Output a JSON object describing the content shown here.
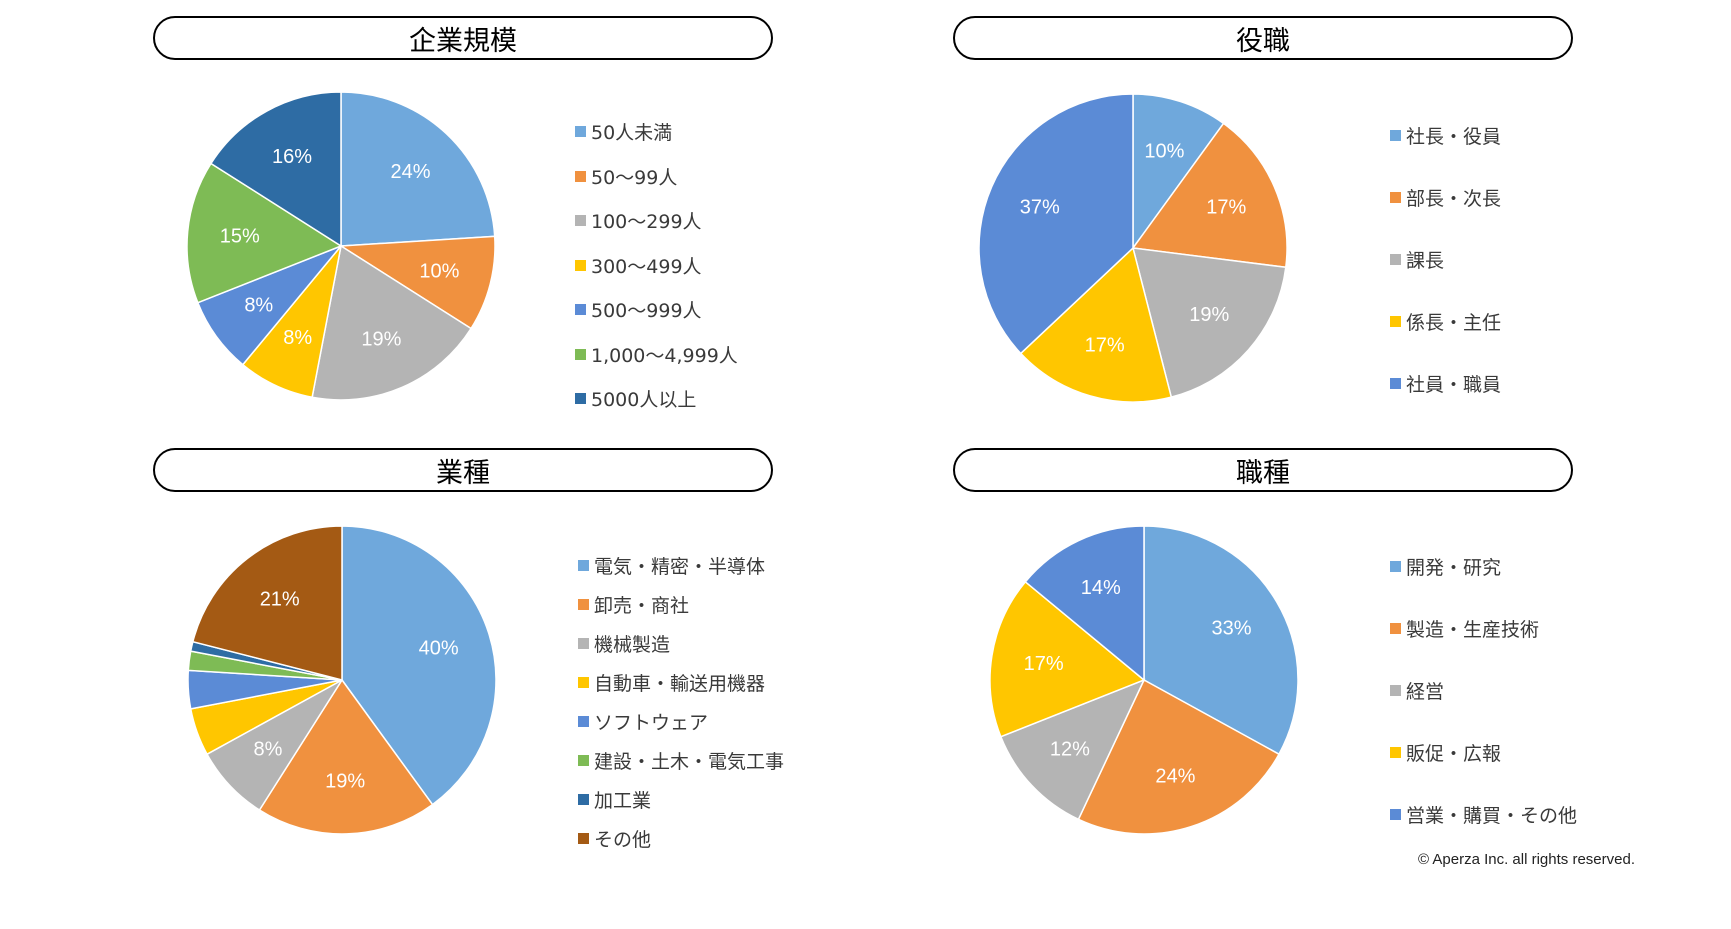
{
  "colors": [
    "#6FA8DC",
    "#F0913F",
    "#B4B4B4",
    "#FFC600",
    "#5B8BD6",
    "#7EBB55",
    "#2E6CA4",
    "#A45A14"
  ],
  "copyright": "© Aperza Inc. all rights reserved.",
  "chart_data": [
    {
      "type": "pie",
      "title": "企業規模",
      "categories": [
        "50人未満",
        "50～99人",
        "100～299人",
        "300～499人",
        "500～999人",
        "1,000～4,999人",
        "5000人以上"
      ],
      "values": [
        24,
        10,
        19,
        8,
        8,
        15,
        16
      ],
      "data_labels": [
        "24%",
        "10%",
        "19%",
        "8%",
        "8%",
        "15%",
        "16%"
      ],
      "color_index": [
        0,
        1,
        2,
        3,
        4,
        5,
        6
      ],
      "legend_position": "right"
    },
    {
      "type": "pie",
      "title": "役職",
      "categories": [
        "社長・役員",
        "部長・次長",
        "課長",
        "係長・主任",
        "社員・職員"
      ],
      "values": [
        10,
        17,
        19,
        17,
        37
      ],
      "data_labels": [
        "10%",
        "17%",
        "19%",
        "17%",
        "37%"
      ],
      "color_index": [
        0,
        1,
        2,
        3,
        4
      ],
      "legend_position": "right"
    },
    {
      "type": "pie",
      "title": "業種",
      "categories": [
        "電気・精密・半導体",
        "卸売・商社",
        "機械製造",
        "自動車・輸送用機器",
        "ソフトウェア",
        "建設・土木・電気工事",
        "加工業",
        "その他"
      ],
      "values": [
        40,
        19,
        8,
        5,
        4,
        2,
        1,
        21
      ],
      "data_labels": [
        "40%",
        "19%",
        "8%",
        "",
        "",
        "",
        "",
        "21%"
      ],
      "color_index": [
        0,
        1,
        2,
        3,
        4,
        5,
        6,
        7
      ],
      "legend_position": "right"
    },
    {
      "type": "pie",
      "title": "職種",
      "categories": [
        "開発・研究",
        "製造・生産技術",
        "経営",
        "販促・広報",
        "営業・購買・その他"
      ],
      "values": [
        33,
        24,
        12,
        17,
        14
      ],
      "data_labels": [
        "33%",
        "24%",
        "12%",
        "17%",
        "14%"
      ],
      "color_index": [
        0,
        1,
        2,
        3,
        4
      ],
      "legend_position": "right"
    }
  ]
}
